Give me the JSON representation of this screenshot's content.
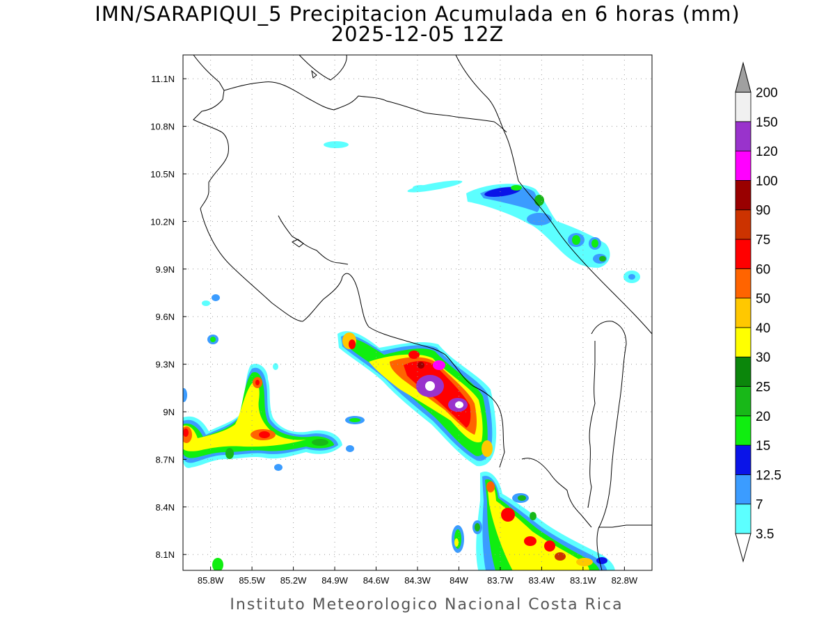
{
  "header": {
    "title_line1": "IMN/SARAPIQUI_5 Precipitacion Acumulada en 6 horas (mm)",
    "title_line2": "2025-12-05 12Z"
  },
  "footer": {
    "credit": "Instituto Meteorologico Nacional Costa Rica"
  },
  "map": {
    "lon_range": [
      -86.0,
      -82.6
    ],
    "lat_range": [
      8.0,
      11.25
    ],
    "lon_ticks": [
      "85.8W",
      "85.5W",
      "85.2W",
      "84.9W",
      "84.6W",
      "84.3W",
      "84W",
      "83.7W",
      "83.4W",
      "83.1W",
      "82.8W"
    ],
    "lat_ticks": [
      "8.1N",
      "8.4N",
      "8.7N",
      "9N",
      "9.3N",
      "9.6N",
      "9.9N",
      "10.2N",
      "10.5N",
      "10.8N",
      "11.1N"
    ],
    "grid": true,
    "grid_style": "dotted"
  },
  "colorbar": {
    "levels": [
      {
        "label": "3.5",
        "color": "#5cffff"
      },
      {
        "label": "7",
        "color": "#3b9cff"
      },
      {
        "label": "12.5",
        "color": "#0a14e8"
      },
      {
        "label": "15",
        "color": "#10ee10"
      },
      {
        "label": "20",
        "color": "#18b818"
      },
      {
        "label": "25",
        "color": "#0b860b"
      },
      {
        "label": "30",
        "color": "#ffff00"
      },
      {
        "label": "40",
        "color": "#ffc800"
      },
      {
        "label": "50",
        "color": "#ff6400"
      },
      {
        "label": "60",
        "color": "#ff0000"
      },
      {
        "label": "75",
        "color": "#cc3300"
      },
      {
        "label": "90",
        "color": "#990000"
      },
      {
        "label": "100",
        "color": "#ff00ff"
      },
      {
        "label": "120",
        "color": "#9933cc"
      },
      {
        "label": "150",
        "color": "#f0f0f0"
      },
      {
        "label": "200",
        "color": "#a0a0a0"
      }
    ]
  }
}
